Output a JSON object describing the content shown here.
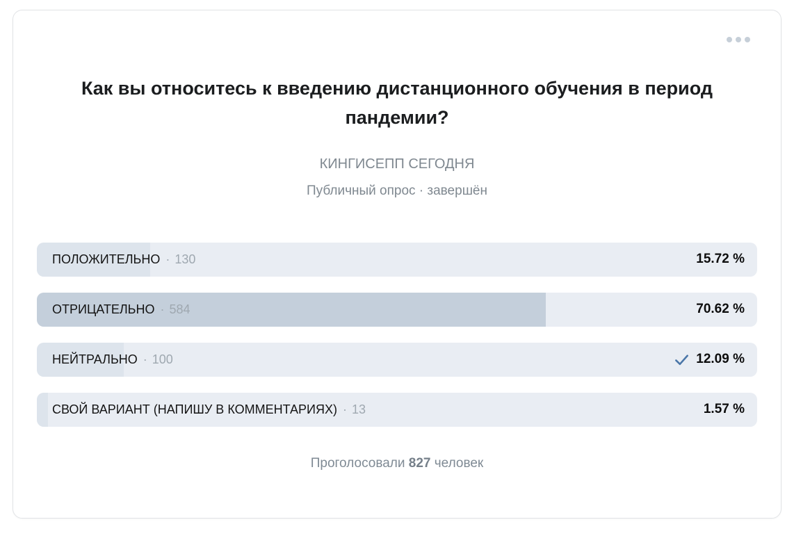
{
  "poll": {
    "question": "Как вы относитесь к введению дистанционного обучения в период пандемии?",
    "author": "КИНГИСЕПП СЕГОДНЯ",
    "type_status": "Публичный опрос · завершён",
    "options": [
      {
        "label": "ПОЛОЖИТЕЛЬНО",
        "separator": "·",
        "count": "130",
        "percent": 15.72,
        "percent_label": "15.72 %",
        "voted": false,
        "leader": false
      },
      {
        "label": "ОТРИЦАТЕЛЬНО",
        "separator": "·",
        "count": "584",
        "percent": 70.62,
        "percent_label": "70.62 %",
        "voted": false,
        "leader": true
      },
      {
        "label": "НЕЙТРАЛЬНО",
        "separator": "·",
        "count": "100",
        "percent": 12.09,
        "percent_label": "12.09 %",
        "voted": true,
        "leader": false
      },
      {
        "label": "СВОЙ ВАРИАНТ (НАПИШУ В КОММЕНТАРИЯХ)",
        "separator": "·",
        "count": "13",
        "percent": 1.57,
        "percent_label": "1.57 %",
        "voted": false,
        "leader": false
      }
    ],
    "footer": {
      "prefix": "Проголосовали",
      "count": "827",
      "suffix": "человек"
    }
  },
  "icons": {
    "more_menu": "ellipsis-horizontal",
    "voted": "check"
  },
  "colors": {
    "option_track": "#e9edf3",
    "option_fill": "#dde4ec",
    "option_fill_leader": "#c4cfdb",
    "check_accent": "#4a76a8",
    "muted_text": "#7f8890"
  }
}
